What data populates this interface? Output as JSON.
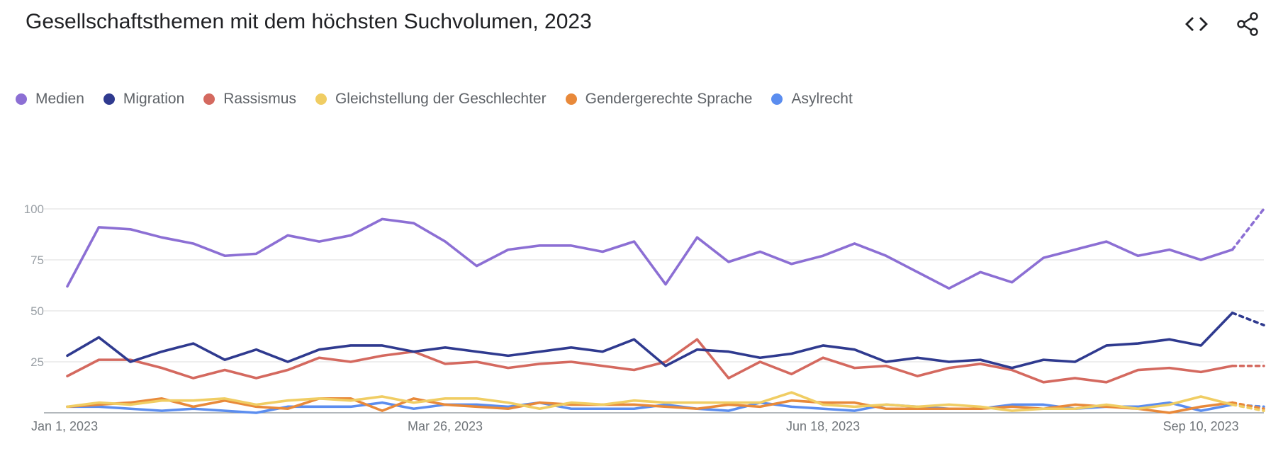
{
  "header": {
    "title": "Gesellschaftsthemen mit dem höchsten Suchvolumen, 2023",
    "embed_icon": "code-icon",
    "share_icon": "share-icon"
  },
  "chart_data": {
    "type": "line",
    "title": "Gesellschaftsthemen mit dem höchsten Suchvolumen, 2023",
    "xlabel": "",
    "ylabel": "",
    "ylim": [
      0,
      100
    ],
    "yticks": [
      25,
      50,
      75,
      100
    ],
    "xtick_labels": [
      "Jan 1, 2023",
      "Mar 26, 2023",
      "Jun 18, 2023",
      "Sep 10, 2023"
    ],
    "xtick_indices": [
      0,
      12,
      24,
      36
    ],
    "x_count": 39,
    "partial_from_index": 37,
    "grid": true,
    "legend_position": "top-left",
    "series": [
      {
        "name": "Medien",
        "color": "#8c6fd4",
        "values": [
          62,
          91,
          90,
          86,
          83,
          77,
          78,
          87,
          84,
          87,
          95,
          93,
          84,
          72,
          80,
          82,
          82,
          79,
          84,
          63,
          86,
          74,
          79,
          73,
          77,
          83,
          77,
          69,
          61,
          69,
          64,
          76,
          80,
          84,
          77,
          80,
          75,
          80,
          100
        ]
      },
      {
        "name": "Migration",
        "color": "#2f3a8f",
        "values": [
          28,
          37,
          25,
          30,
          34,
          26,
          31,
          25,
          31,
          33,
          33,
          30,
          32,
          30,
          28,
          30,
          32,
          30,
          36,
          23,
          31,
          30,
          27,
          29,
          33,
          31,
          25,
          27,
          25,
          26,
          22,
          26,
          25,
          33,
          34,
          36,
          33,
          49,
          43
        ]
      },
      {
        "name": "Rassismus",
        "color": "#d4695f",
        "values": [
          18,
          26,
          26,
          22,
          17,
          21,
          17,
          21,
          27,
          25,
          28,
          30,
          24,
          25,
          22,
          24,
          25,
          23,
          21,
          25,
          36,
          17,
          25,
          19,
          27,
          22,
          23,
          18,
          22,
          24,
          21,
          15,
          17,
          15,
          21,
          22,
          20,
          23,
          23
        ]
      },
      {
        "name": "Gleichstellung der Geschlechter",
        "color": "#f0cd63",
        "values": [
          3,
          5,
          4,
          6,
          6,
          7,
          4,
          6,
          7,
          6,
          8,
          5,
          7,
          7,
          5,
          2,
          5,
          4,
          6,
          5,
          5,
          5,
          5,
          10,
          4,
          3,
          4,
          3,
          4,
          3,
          1,
          2,
          2,
          4,
          2,
          4,
          8,
          4,
          1
        ]
      },
      {
        "name": "Gendergerechte Sprache",
        "color": "#e8893a",
        "values": [
          3,
          4,
          5,
          7,
          3,
          6,
          3,
          2,
          7,
          7,
          1,
          7,
          4,
          3,
          2,
          5,
          4,
          4,
          4,
          3,
          2,
          4,
          3,
          6,
          5,
          5,
          2,
          2,
          2,
          2,
          3,
          2,
          4,
          3,
          2,
          0,
          3,
          5,
          2
        ]
      },
      {
        "name": "Asylrecht",
        "color": "#5b8def",
        "values": [
          3,
          3,
          2,
          1,
          2,
          1,
          0,
          3,
          3,
          3,
          5,
          2,
          4,
          4,
          3,
          5,
          2,
          2,
          2,
          4,
          2,
          1,
          5,
          3,
          2,
          1,
          4,
          3,
          2,
          2,
          4,
          4,
          2,
          3,
          3,
          5,
          1,
          4,
          3
        ]
      }
    ]
  }
}
